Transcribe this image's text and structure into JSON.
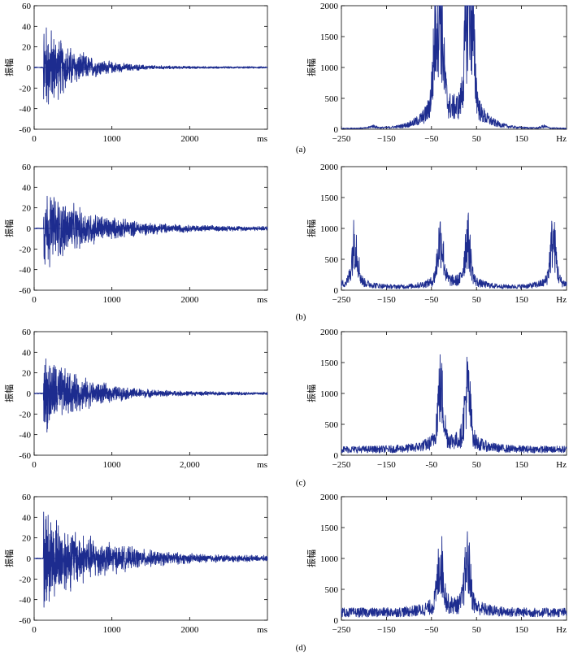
{
  "figure": {
    "panel_labels": [
      "(a)",
      "(b)",
      "(c)",
      "(d)"
    ]
  },
  "colors": {
    "series": "#1d2c8f",
    "axes": "#000000"
  },
  "chart_data": [
    {
      "type": "line",
      "panel": "(a)",
      "domain": "time",
      "ylabel": "振幅",
      "x_unit_label": "ms",
      "xlim": [
        0,
        3000
      ],
      "ylim": [
        -60,
        60
      ],
      "x_tick_labels": [
        "0",
        "1000",
        "2000"
      ],
      "x_tick_values": [
        0,
        1000,
        2000
      ],
      "y_tick_labels": [
        "60",
        "40",
        "20",
        "0",
        "-20",
        "-40",
        "-60"
      ],
      "envelope": {
        "onset_ms": 120,
        "peak_amplitude": 55,
        "decay_ms": 380,
        "tail_amplitude": 1
      }
    },
    {
      "type": "line",
      "panel": "(a)",
      "domain": "frequency",
      "ylabel": "振幅",
      "x_unit_label": "Hz",
      "xlim": [
        -250,
        250
      ],
      "ylim": [
        0,
        2000
      ],
      "x_tick_labels": [
        "−250",
        "−150",
        "−50",
        "50",
        "150"
      ],
      "x_tick_values": [
        -250,
        -150,
        -50,
        50,
        150
      ],
      "y_tick_labels": [
        "2000",
        "1500",
        "1000",
        "500",
        "0"
      ],
      "peaks": [
        {
          "x": -30,
          "y": 1950
        },
        {
          "x": 30,
          "y": 1950
        },
        {
          "x": -40,
          "y": 1450
        },
        {
          "x": 40,
          "y": 1450
        },
        {
          "x": -180,
          "y": 40
        },
        {
          "x": 200,
          "y": 40
        }
      ],
      "baseline": 20
    },
    {
      "type": "line",
      "panel": "(b)",
      "domain": "time",
      "ylabel": "振幅",
      "x_unit_label": "ms",
      "xlim": [
        0,
        3000
      ],
      "ylim": [
        -60,
        60
      ],
      "x_tick_labels": [
        "0",
        "1000",
        "2000"
      ],
      "x_tick_values": [
        0,
        1000,
        2000
      ],
      "y_tick_labels": [
        "60",
        "40",
        "20",
        "0",
        "-20",
        "-40",
        "-60"
      ],
      "envelope": {
        "onset_ms": 120,
        "peak_amplitude": 45,
        "decay_ms": 600,
        "tail_amplitude": 2
      }
    },
    {
      "type": "line",
      "panel": "(b)",
      "domain": "frequency",
      "ylabel": "振幅",
      "x_unit_label": "Hz",
      "xlim": [
        -250,
        250
      ],
      "ylim": [
        0,
        2000
      ],
      "x_tick_labels": [
        "−250",
        "−150",
        "−50",
        "50",
        "150"
      ],
      "x_tick_values": [
        -250,
        -150,
        -50,
        50,
        150
      ],
      "y_tick_labels": [
        "2000",
        "1500",
        "1000",
        "500",
        "0"
      ],
      "peaks": [
        {
          "x": -30,
          "y": 980
        },
        {
          "x": 30,
          "y": 980
        },
        {
          "x": -220,
          "y": 980
        },
        {
          "x": 220,
          "y": 980
        }
      ],
      "baseline": 70
    },
    {
      "type": "line",
      "panel": "(c)",
      "domain": "time",
      "ylabel": "振幅",
      "x_unit_label": "ms",
      "xlim": [
        0,
        3000
      ],
      "ylim": [
        -60,
        60
      ],
      "x_tick_labels": [
        "0",
        "1000",
        "2,000"
      ],
      "x_tick_values": [
        0,
        1000,
        2000
      ],
      "y_tick_labels": [
        "60",
        "40",
        "20",
        "0",
        "-20",
        "-40",
        "-60"
      ],
      "envelope": {
        "onset_ms": 120,
        "peak_amplitude": 45,
        "decay_ms": 500,
        "tail_amplitude": 1.5
      }
    },
    {
      "type": "line",
      "panel": "(c)",
      "domain": "frequency",
      "ylabel": "振幅",
      "x_unit_label": "Hz",
      "xlim": [
        -250,
        250
      ],
      "ylim": [
        0,
        2000
      ],
      "x_tick_labels": [
        "−250",
        "−150",
        "-50",
        "50",
        "150"
      ],
      "x_tick_values": [
        -250,
        -150,
        -50,
        50,
        150
      ],
      "y_tick_labels": [
        "2000",
        "1500",
        "1000",
        "500",
        "0"
      ],
      "peaks": [
        {
          "x": -30,
          "y": 1230
        },
        {
          "x": 30,
          "y": 1230
        }
      ],
      "baseline": 150
    },
    {
      "type": "line",
      "panel": "(d)",
      "domain": "time",
      "ylabel": "振幅",
      "x_unit_label": "ms",
      "xlim": [
        0,
        3000
      ],
      "ylim": [
        -60,
        60
      ],
      "x_tick_labels": [
        "0",
        "1000",
        "2000"
      ],
      "x_tick_values": [
        0,
        1000,
        2000
      ],
      "y_tick_labels": [
        "60",
        "40",
        "20",
        "0",
        "-20",
        "-40",
        "-60"
      ],
      "envelope": {
        "onset_ms": 120,
        "peak_amplitude": 55,
        "decay_ms": 650,
        "tail_amplitude": 2.5
      }
    },
    {
      "type": "line",
      "panel": "(d)",
      "domain": "frequency",
      "ylabel": "振幅",
      "x_unit_label": "Hz",
      "xlim": [
        -250,
        250
      ],
      "ylim": [
        0,
        2000
      ],
      "x_tick_labels": [
        "−250",
        "−150",
        "−50",
        "50",
        "150"
      ],
      "x_tick_values": [
        -250,
        -150,
        -50,
        50,
        150
      ],
      "y_tick_labels": [
        "2000",
        "1500",
        "1000",
        "500",
        "0"
      ],
      "peaks": [
        {
          "x": -30,
          "y": 1030
        },
        {
          "x": 30,
          "y": 1030
        }
      ],
      "baseline": 200
    }
  ]
}
